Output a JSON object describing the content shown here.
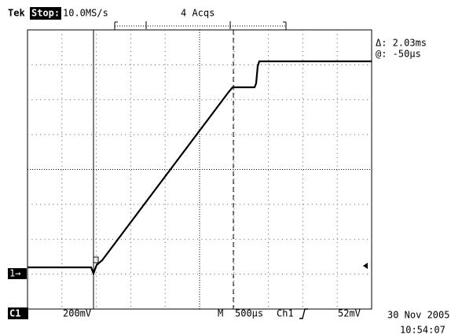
{
  "header": {
    "brand": "Tek",
    "state": "Stop:",
    "sample_rate": "10.0MS/s",
    "acquisitions": "4 Acqs"
  },
  "readout": {
    "delta": "Δ: 2.03ms",
    "at": "@: -50µs"
  },
  "channel_marker": "1→",
  "footer": {
    "channel": "C1",
    "volts_per_div": "200mV",
    "mode": "M",
    "time_per_div": "500µs",
    "trigger_source": "Ch1",
    "trigger_level": "52mV"
  },
  "timestamp": {
    "date": "30 Nov 2005",
    "time": "10:54:07"
  }
}
